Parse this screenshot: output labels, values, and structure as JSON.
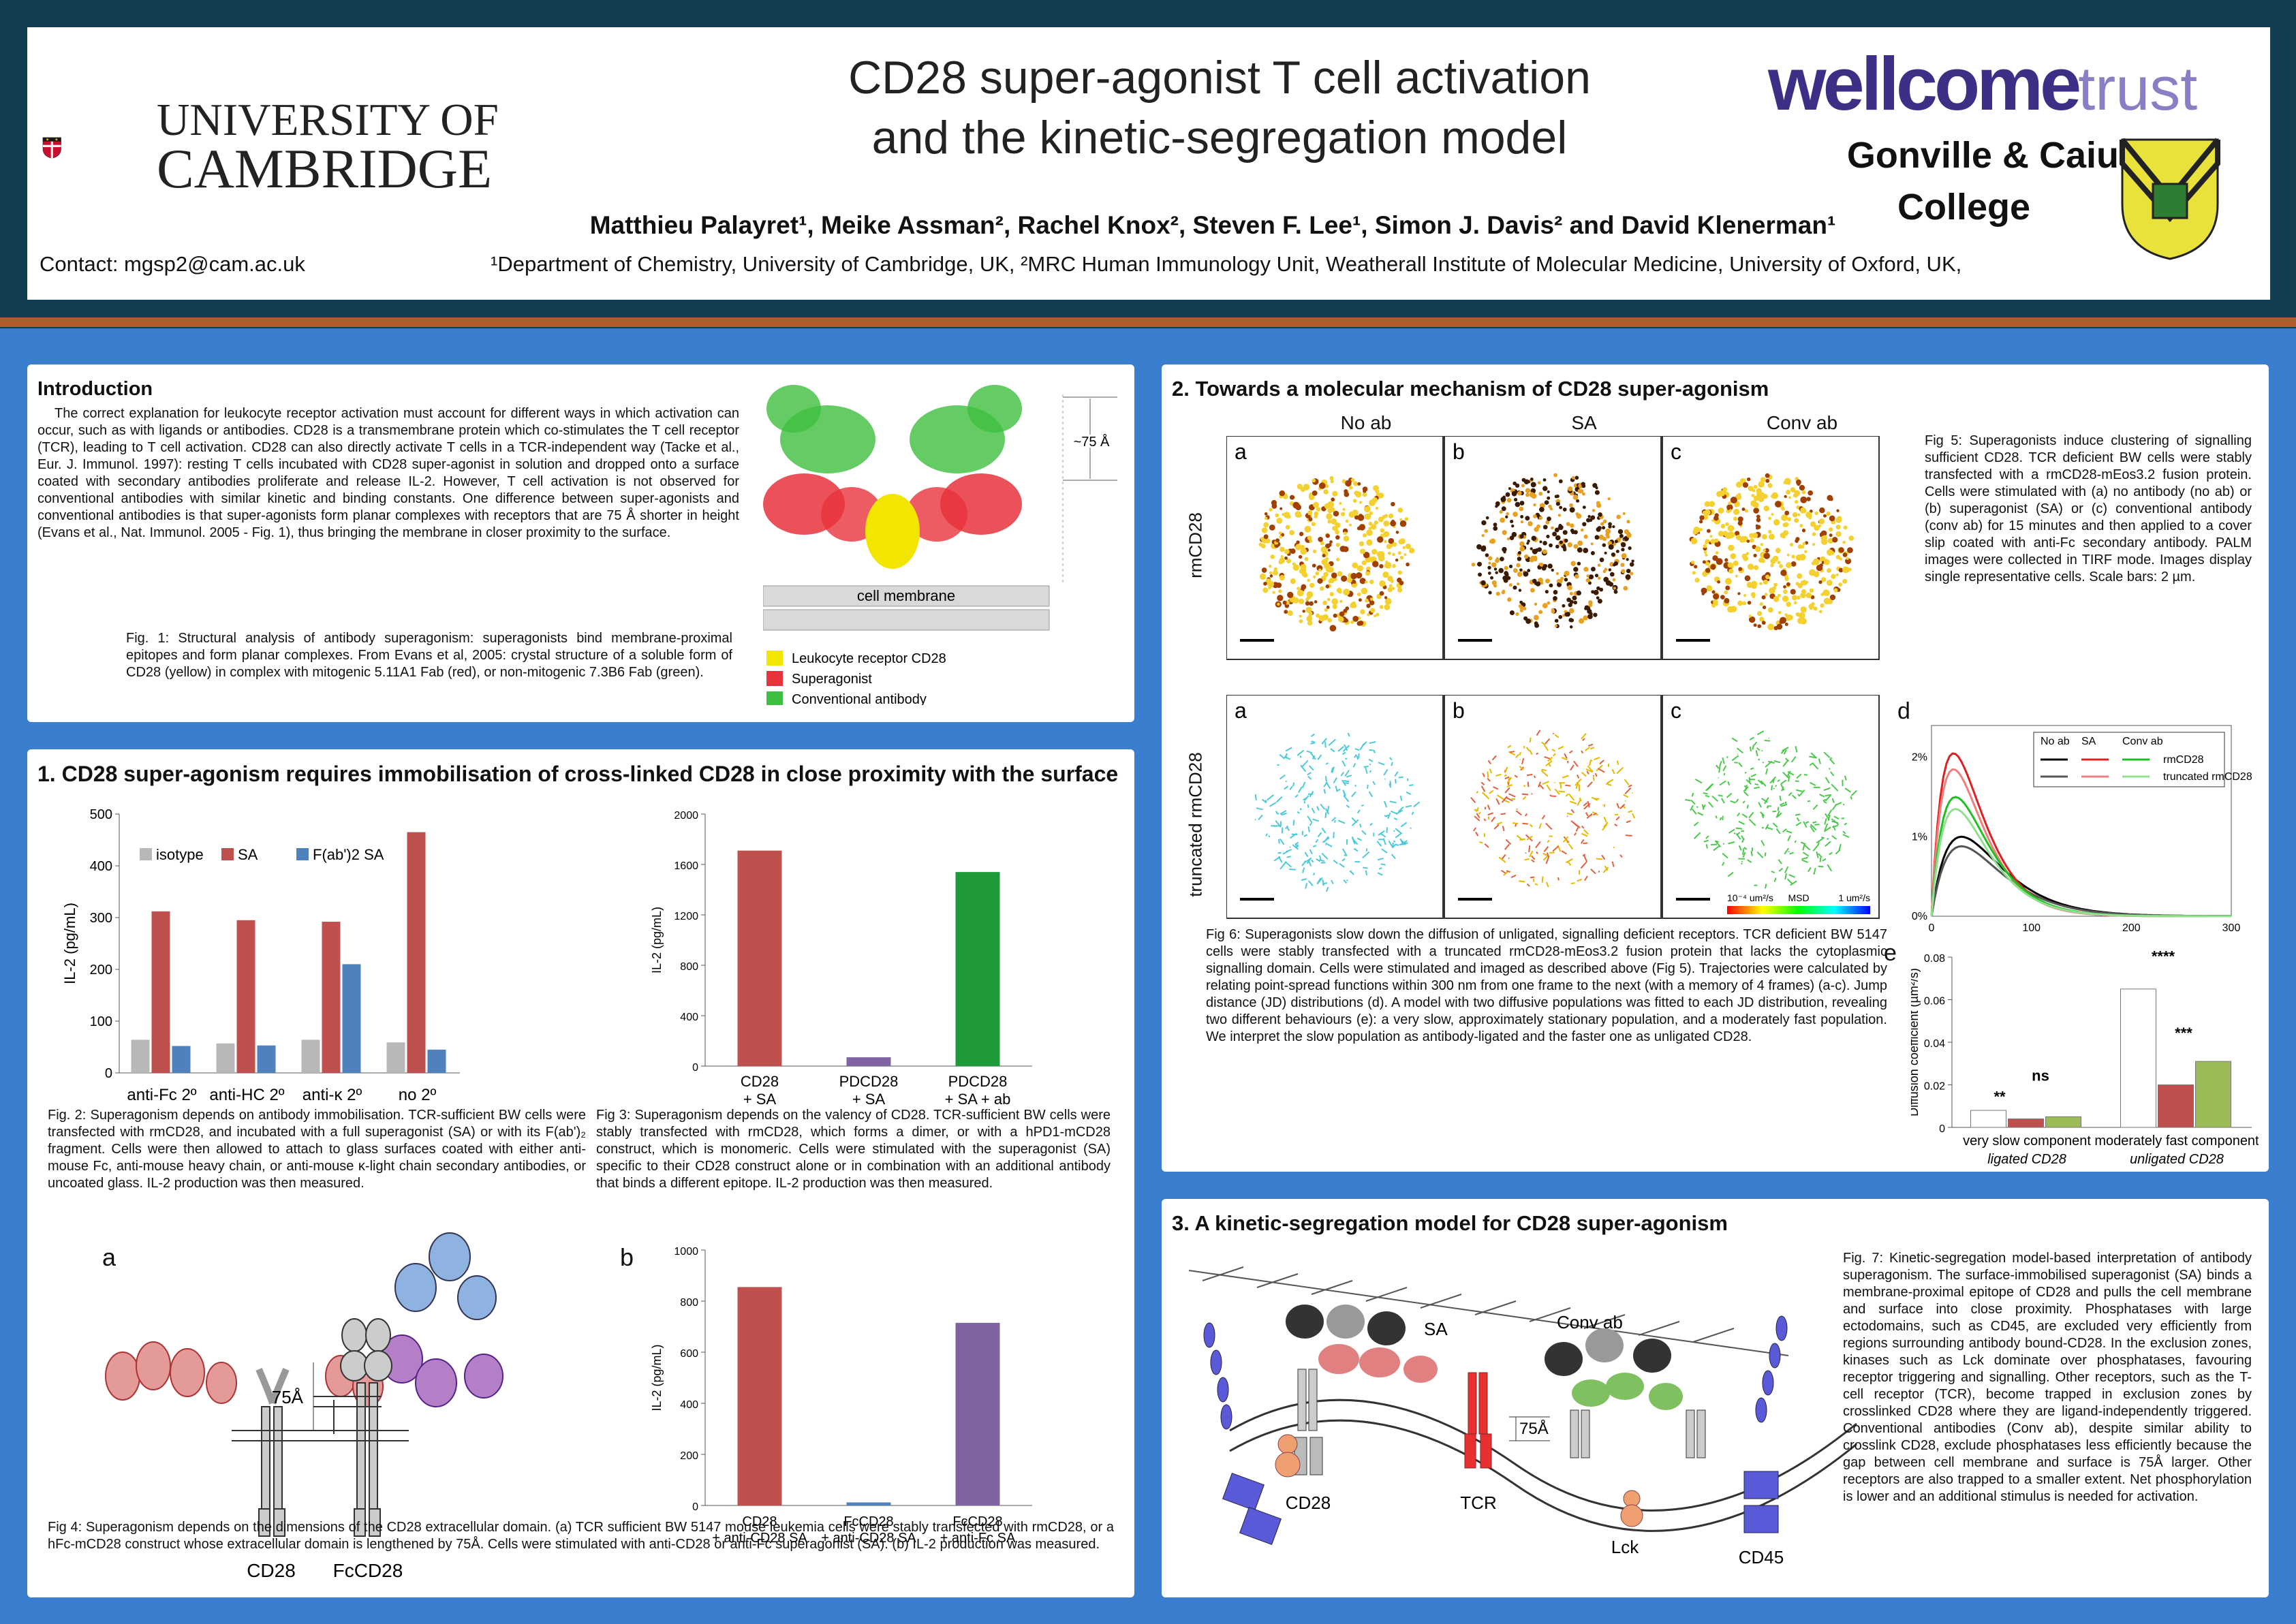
{
  "header": {
    "title_l1": "CD28 super-agonist T cell activation",
    "title_l2": "and the kinetic-segregation model",
    "authors": "Matthieu Palayret¹, Meike Assman², Rachel Knox², Steven F. Lee¹, Simon J. Davis² and David Klenerman¹",
    "affiliations": "¹Department of Chemistry, University of Cambridge, UK, ²MRC Human Immunology Unit, Weatherall Institute of Molecular Medicine, University of Oxford, UK,",
    "contact": "Contact: mgsp2@cam.ac.uk",
    "cambridge_l1": "UNIVERSITY OF",
    "cambridge_l2": "CAMBRIDGE",
    "wellcome": "wellcome",
    "trust": "trust",
    "caius_l1": "Gonville & Caius",
    "caius_l2": "College"
  },
  "intro": {
    "heading": "Introduction",
    "body": "The correct explanation for leukocyte receptor activation must account for different ways in which activation can occur, such as with ligands or antibodies. CD28 is a transmembrane protein which co-stimulates the T cell receptor (TCR), leading to T cell activation. CD28 can also directly activate T cells in a TCR-independent way (Tacke et al., Eur. J. Immunol. 1997): resting T cells incubated with CD28 super-agonist in solution and dropped onto a surface coated with secondary antibodies proliferate and release IL-2. However, T cell activation is not observed for conventional antibodies with similar kinetic and binding constants. One difference between super-agonists and conventional antibodies is that super-agonists form planar complexes with receptors that are 75 Å shorter in height (Evans et al., Nat. Immunol. 2005 - Fig. 1), thus bringing the membrane in closer proximity to the surface.",
    "fig1_caption": "Fig. 1: Structural analysis of antibody superagonism: superagonists bind membrane-proximal epitopes and form planar complexes. From Evans et al, 2005: crystal structure of a soluble form of CD28 (yellow) in complex with mitogenic 5.11A1 Fab (red), or non-mitogenic 7.3B6 Fab (green).",
    "fig1_dim": "~75 Å",
    "fig1_membrane": "cell membrane",
    "legend": [
      "Leukocyte receptor CD28",
      "Superagonist",
      "Conventional antibody"
    ],
    "colors": {
      "cd28": "#f2e600",
      "sa": "#e8323c",
      "conv": "#3fbf3f"
    }
  },
  "sec1": {
    "heading": "1. CD28 super-agonism requires immobilisation of cross-linked CD28 in close proximity with the surface",
    "fig2_caption": "Fig. 2: Superagonism depends on antibody immobilisation. TCR-sufficient BW cells were transfected with rmCD28, and incubated with a full superagonist (SA) or with its F(ab')₂ fragment. Cells were then allowed to attach to glass surfaces coated with either anti-mouse Fc, anti-mouse heavy chain, or anti-mouse κ-light chain secondary antibodies, or uncoated glass. IL-2 production was then measured.",
    "fig3_caption": "Fig 3: Superagonism depends on the valency of CD28. TCR-sufficient BW cells were stably transfected with rmCD28, which forms a dimer, or with a hPD1-mCD28 construct, which is monomeric. Cells were stimulated with the superagonist (SA) specific to their CD28 construct alone or in combination with an additional antibody that binds a different epitope. IL-2 production was then measured.",
    "fig4_caption": "Fig 4: Superagonism depends on the dimensions of the CD28 extracellular domain. (a) TCR sufficient BW 5147 mouse leukemia cells were stably transfected with rmCD28, or a hFc-mCD28 construct whose extracellular domain is lengthened by 75Å. Cells were stimulated with anti-CD28 or anti-Fc superagonist (SA). (b) IL-2 production was measured.",
    "fig4a_letter": "a",
    "fig4b_letter": "b",
    "fig4a_labels": [
      "CD28",
      "FcCD28",
      "75Å"
    ]
  },
  "sec2": {
    "heading": "2. Towards a molecular mechanism of CD28 super-agonism",
    "cols": [
      "No ab",
      "SA",
      "Conv ab"
    ],
    "row1": "rmCD28",
    "row2": "truncated rmCD28",
    "letters": [
      "a",
      "b",
      "c"
    ],
    "msd": [
      "10⁻⁴ um²/s",
      "MSD",
      "1 um²/s"
    ],
    "fig5_caption": "Fig 5: Superagonists induce clustering of signalling sufficient CD28. TCR deficient BW cells were stably transfected with a rmCD28-mEos3.2 fusion protein. Cells were stimulated with (a) no antibody (no ab) or (b) superagonist (SA) or (c) conventional antibody (conv ab) for 15 minutes and then applied to a cover slip coated with anti-Fc secondary antibody. PALM images were collected in TIRF mode. Images display single representative cells. Scale bars: 2 µm.",
    "fig6_caption": "Fig 6: Superagonists slow down the diffusion of unligated, signalling deficient receptors. TCR deficient BW 5147 cells were stably transfected with a truncated rmCD28-mEos3.2 fusion protein that lacks the cytoplasmic signalling domain. Cells were stimulated and imaged as described above (Fig 5). Trajectories were calculated by relating point-spread functions within 300 nm from one frame to the next (with a memory of 4 frames) (a-c). Jump distance (JD) distributions (d). A model with two diffusive populations was fitted to each JD distribution, revealing two different behaviours (e): a very slow, approximately stationary population, and a moderately fast population. We interpret the slow population as antibody-ligated and the faster one as unligated CD28.",
    "d_letter": "d",
    "e_letter": "e"
  },
  "sec3": {
    "heading": "3. A kinetic-segregation model for CD28 super-agonism",
    "fig7_caption": "Fig. 7: Kinetic-segregation model-based interpretation of antibody superagonism. The surface-immobilised superagonist (SA) binds a membrane-proximal epitope of CD28 and pulls the cell membrane and surface into close proximity. Phosphatases with large ectodomains, such as CD45, are excluded very efficiently from regions surrounding antibody bound-CD28. In the exclusion zones, kinases such as Lck dominate over phosphatases, favouring receptor triggering and signalling. Other receptors, such as the T-cell receptor (TCR), become trapped in exclusion zones by crosslinked CD28 where they are ligand-independently triggered. Conventional antibodies (Conv ab), despite similar ability to crosslink CD28, exclude phosphatases less efficiently because the gap between cell membrane and surface is 75Å larger. Other receptors are also trapped to a smaller extent. Net phosphorylation is lower and an additional stimulus is needed for activation.",
    "labels": [
      "SA",
      "Conv ab",
      "75Å",
      "CD28",
      "TCR",
      "Lck",
      "CD45"
    ]
  },
  "chart_data": [
    {
      "type": "bar",
      "id": "fig2",
      "ylabel": "IL-2 (pg/mL)",
      "ylim": [
        0,
        500
      ],
      "yticks": [
        0,
        100,
        200,
        300,
        400,
        500
      ],
      "categories": [
        "anti-Fc  2º",
        "anti-HC  2º",
        "anti-κ  2º",
        "no 2º"
      ],
      "series": [
        {
          "name": "isotype",
          "color": "#b8b8b8",
          "values": [
            64,
            57,
            64,
            59
          ]
        },
        {
          "name": "SA",
          "color": "#c0504d",
          "values": [
            312,
            295,
            292,
            465
          ]
        },
        {
          "name": "F(ab')2 SA",
          "color": "#4f81bd",
          "values": [
            52,
            53,
            210,
            45
          ]
        }
      ]
    },
    {
      "type": "bar",
      "id": "fig3",
      "ylabel": "IL-2 (pg/mL)",
      "ylim": [
        0,
        2000
      ],
      "yticks": [
        0,
        400,
        800,
        1200,
        1600,
        2000
      ],
      "categories": [
        "CD28\n+ SA",
        "PDCD28\n+ SA",
        "PDCD28\n+ SA + ab"
      ],
      "values": [
        1710,
        70,
        1540
      ],
      "colors": [
        "#c0504d",
        "#8064a2",
        "#1f9a3b"
      ]
    },
    {
      "type": "bar",
      "id": "fig4b",
      "ylabel": "IL-2 (pg/mL)",
      "ylim": [
        0,
        1000
      ],
      "yticks": [
        0,
        200,
        400,
        600,
        800,
        1000
      ],
      "categories": [
        "CD28\n+ anti-CD28 SA",
        "FcCD28\n+ anti-CD28 SA",
        "FcCD28\n+ anti-Fc SA"
      ],
      "values": [
        855,
        12,
        715
      ],
      "colors": [
        "#c0504d",
        "#4f81bd",
        "#8064a2"
      ]
    },
    {
      "type": "line",
      "id": "fig6d",
      "xlim": [
        0,
        300
      ],
      "xticks": [
        0,
        100,
        200,
        300
      ],
      "yticks": [
        "0%",
        "1%",
        "2%"
      ],
      "ylim": [
        0,
        2.4
      ],
      "legend": {
        "headers": [
          "No ab",
          "SA",
          "Conv ab"
        ],
        "rows": [
          "rmCD28",
          "truncated rmCD28"
        ]
      },
      "series": [
        {
          "name": "No ab rmCD28",
          "color": "#000000",
          "peak": 1.0,
          "peak_x": 30
        },
        {
          "name": "No ab truncated rmCD28",
          "color": "#555555",
          "peak": 0.88,
          "peak_x": 30
        },
        {
          "name": "SA rmCD28",
          "color": "#e02020",
          "peak": 2.05,
          "peak_x": 22
        },
        {
          "name": "SA truncated rmCD28",
          "color": "#f08080",
          "peak": 1.85,
          "peak_x": 22
        },
        {
          "name": "Conv ab rmCD28",
          "color": "#20c020",
          "peak": 1.5,
          "peak_x": 24
        },
        {
          "name": "Conv ab truncated rmCD28",
          "color": "#90e090",
          "peak": 1.35,
          "peak_x": 24
        }
      ]
    },
    {
      "type": "bar",
      "id": "fig6e",
      "ylabel": "Diffusion coefficient (µm²/s)",
      "ylim": [
        0,
        0.08
      ],
      "yticks": [
        0,
        0.02,
        0.04,
        0.06,
        0.08
      ],
      "categories": [
        "very slow component",
        "moderately fast component"
      ],
      "subcategories": [
        "ligated CD28",
        "unligated CD28"
      ],
      "series": [
        {
          "name": "No ab",
          "color": "#ffffff",
          "values": [
            0.008,
            0.065
          ]
        },
        {
          "name": "SA",
          "color": "#c0504d",
          "values": [
            0.004,
            0.02
          ]
        },
        {
          "name": "Conv ab",
          "color": "#9bbb59",
          "values": [
            0.005,
            0.031
          ]
        }
      ],
      "annotations": [
        "**",
        "ns",
        "****",
        "***"
      ]
    }
  ]
}
